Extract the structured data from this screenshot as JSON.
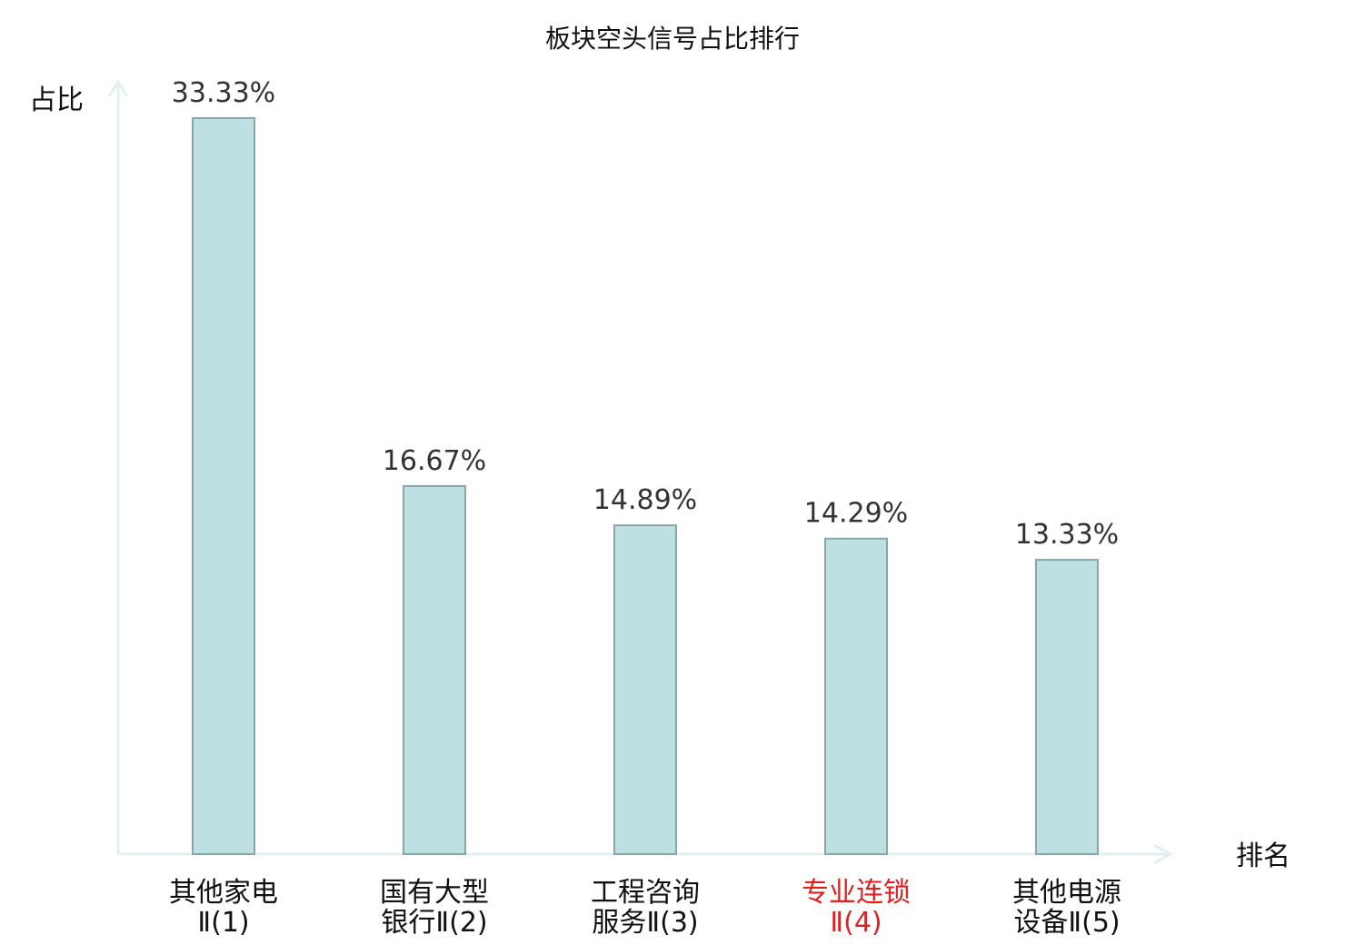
{
  "chart_data": {
    "type": "bar",
    "title": "板块空头信号占比排行",
    "xlabel": "排名",
    "ylabel": "占比",
    "ylim": [
      0,
      35
    ],
    "grid": false,
    "legend": "none",
    "categories": [
      [
        "其他家电",
        "Ⅱ(1)"
      ],
      [
        "国有大型",
        "银行Ⅱ(2)"
      ],
      [
        "工程咨询",
        "服务Ⅱ(3)"
      ],
      [
        "专业连锁",
        "Ⅱ(4)"
      ],
      [
        "其他电源",
        "设备Ⅱ(5)"
      ]
    ],
    "values": [
      33.33,
      16.67,
      14.89,
      14.29,
      13.33
    ],
    "value_labels": [
      "33.33%",
      "16.67%",
      "14.89%",
      "14.29%",
      "13.33%"
    ],
    "highlight_index": 3,
    "colors": {
      "bar_fill": "#bde0e2",
      "bar_stroke": "#8aa5a6",
      "axis": "#e0f2f0",
      "highlight_text": "#e02020",
      "text": "#111111",
      "value_text": "#333333"
    }
  }
}
